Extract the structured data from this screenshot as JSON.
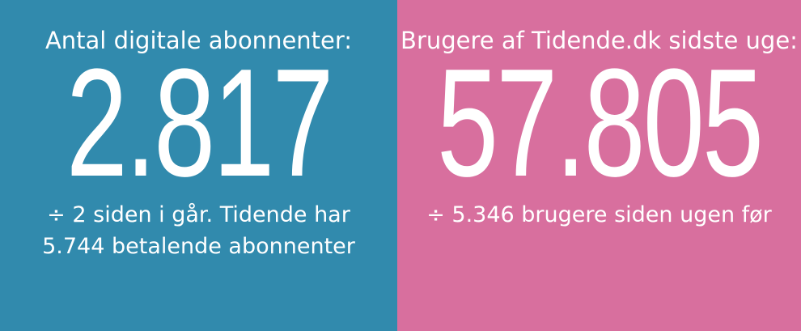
{
  "left_panel": {
    "label": "Antal digitale abonnenter:",
    "value": "2.817",
    "sub_line1": "÷ 2 siden i går. Tidende har",
    "sub_line2": "5.744 betalende abonnenter",
    "background": "#318aad"
  },
  "right_panel": {
    "label": "Brugere af Tidende.dk sidste uge:",
    "value": "57.805",
    "sub_line1": "÷ 5.346 brugere siden ugen før",
    "background": "#d86f9e"
  }
}
